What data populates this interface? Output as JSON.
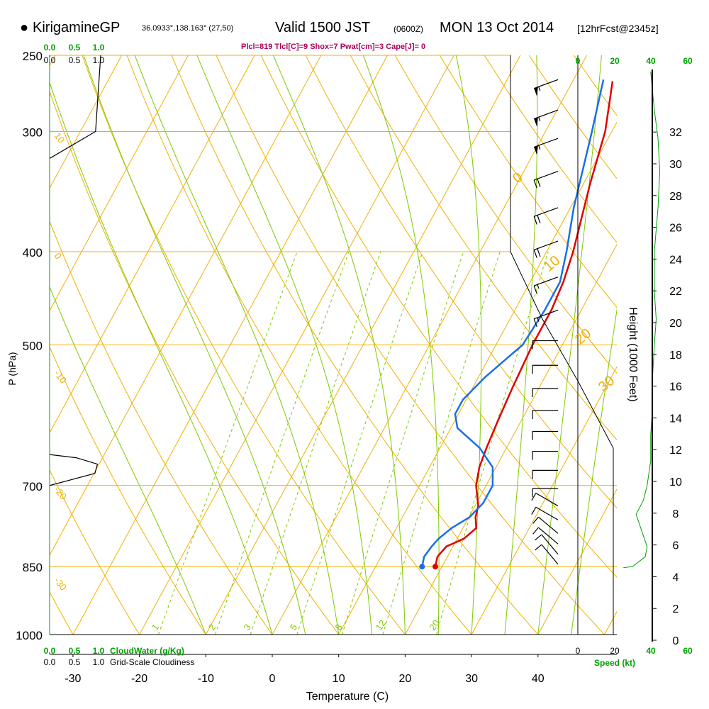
{
  "header": {
    "station": "KirigamineGP",
    "coords": "36.0933°,138.163° (27,50)",
    "valid": "Valid 1500 JST",
    "zulu": "(0600Z)",
    "date": "MON 13 Oct 2014",
    "forecast": "[12hrFcst@2345z]"
  },
  "params_line": "Plcl=819 Tlcl[C]=9 Shox=7 Pwat[cm]=3 Cape[J]= 0",
  "cloud": {
    "top_green": [
      "0.0",
      "0.5",
      "1.0"
    ],
    "top_black": [
      "0.0",
      "0.5",
      "1.0"
    ],
    "bottom_green": [
      "0.0",
      "0.5",
      "1.0"
    ],
    "bottom_black": [
      "0.0",
      "0.5",
      "1.0"
    ],
    "cloud_water_label": "CloudWater (g/Kg)",
    "cloudiness_label": "Grid-Scale Cloudiness"
  },
  "speed": {
    "top_green": [
      "0",
      "20",
      "40",
      "60"
    ],
    "bottom_black": [
      "0",
      "20"
    ],
    "bottom_green": [
      "40",
      "60"
    ],
    "label": "Speed (kt)"
  },
  "colors": {
    "temperature": "#e00000",
    "dewpoint": "#1a6fe8",
    "isobar": "#f0b000",
    "mixing_ratio": "#80c800",
    "cloud_green": "#00a000",
    "params": "#b0005a"
  },
  "chart_data": {
    "type": "line",
    "title": "KirigamineGP Valid 1500 JST MON 13 Oct 2014",
    "xlabel": "Temperature (C)",
    "ylabel": "P (hPa)",
    "y2label": "Height (1000 Feet)",
    "xlim": [
      -35,
      45
    ],
    "ylim": [
      1000,
      250
    ],
    "yscale": "log",
    "x_ticks": [
      -30,
      -20,
      -10,
      0,
      10,
      20,
      30,
      40
    ],
    "p_ticks": [
      250,
      300,
      400,
      500,
      700,
      850,
      1000
    ],
    "height_ticks": [
      0,
      2,
      4,
      6,
      8,
      10,
      12,
      14,
      16,
      18,
      20,
      22,
      24,
      26,
      28,
      30,
      32
    ],
    "mixing_ratio_labels": [
      "1",
      "2",
      "3",
      "5",
      "8",
      "12",
      "20"
    ],
    "isotherm_labels": [
      {
        "text": "10",
        "p": 300
      },
      {
        "text": "0",
        "p": 400
      },
      {
        "text": "-10",
        "p": 530
      },
      {
        "text": "-20",
        "p": 700
      },
      {
        "text": "-30",
        "p": 870
      }
    ],
    "adiabat_labels": [
      {
        "text": "0",
        "p": 340
      },
      {
        "text": "10",
        "p": 420
      },
      {
        "text": "20",
        "p": 500
      },
      {
        "text": "30",
        "p": 560
      }
    ],
    "series": [
      {
        "name": "Temperature",
        "points": [
          [
            19,
            850
          ],
          [
            18.5,
            830
          ],
          [
            19,
            810
          ],
          [
            21,
            795
          ],
          [
            22,
            775
          ],
          [
            21,
            755
          ],
          [
            20.5,
            735
          ],
          [
            18.5,
            700
          ],
          [
            17.5,
            670
          ],
          [
            17,
            640
          ],
          [
            16.5,
            600
          ],
          [
            16,
            555
          ],
          [
            15.5,
            500
          ],
          [
            15.5,
            460
          ],
          [
            15,
            430
          ],
          [
            14,
            400
          ],
          [
            11,
            340
          ],
          [
            9,
            300
          ],
          [
            6,
            266
          ]
        ]
      },
      {
        "name": "Dewpoint",
        "points": [
          [
            17,
            850
          ],
          [
            16.5,
            830
          ],
          [
            16.8,
            810
          ],
          [
            17.2,
            795
          ],
          [
            18.3,
            775
          ],
          [
            20.1,
            755
          ],
          [
            21,
            730
          ],
          [
            21,
            700
          ],
          [
            19.5,
            670
          ],
          [
            16,
            640
          ],
          [
            11,
            610
          ],
          [
            9.5,
            590
          ],
          [
            9.5,
            570
          ],
          [
            11,
            540
          ],
          [
            14,
            500
          ],
          [
            14.5,
            460
          ],
          [
            14.5,
            430
          ],
          [
            13,
            400
          ],
          [
            10.5,
            360
          ],
          [
            7,
            300
          ],
          [
            4.5,
            265
          ]
        ]
      }
    ],
    "wind_profile": [
      {
        "p": 265,
        "dir": 250,
        "kt": 55
      },
      {
        "p": 285,
        "dir": 250,
        "kt": 55
      },
      {
        "p": 305,
        "dir": 250,
        "kt": 55
      },
      {
        "p": 330,
        "dir": 250,
        "kt": 20
      },
      {
        "p": 360,
        "dir": 250,
        "kt": 20
      },
      {
        "p": 390,
        "dir": 250,
        "kt": 20
      },
      {
        "p": 425,
        "dir": 250,
        "kt": 15
      },
      {
        "p": 460,
        "dir": 250,
        "kt": 15
      },
      {
        "p": 495,
        "dir": 270,
        "kt": 10
      },
      {
        "p": 525,
        "dir": 270,
        "kt": 10
      },
      {
        "p": 555,
        "dir": 270,
        "kt": 10
      },
      {
        "p": 585,
        "dir": 270,
        "kt": 10
      },
      {
        "p": 615,
        "dir": 270,
        "kt": 10
      },
      {
        "p": 645,
        "dir": 270,
        "kt": 10
      },
      {
        "p": 675,
        "dir": 270,
        "kt": 10
      },
      {
        "p": 705,
        "dir": 270,
        "kt": 10
      },
      {
        "p": 735,
        "dir": 300,
        "kt": 10
      },
      {
        "p": 760,
        "dir": 300,
        "kt": 10
      },
      {
        "p": 785,
        "dir": 310,
        "kt": 10
      },
      {
        "p": 805,
        "dir": 310,
        "kt": 10
      },
      {
        "p": 825,
        "dir": 320,
        "kt": 10
      },
      {
        "p": 845,
        "dir": 320,
        "kt": 10
      }
    ],
    "cloud_water": [
      [
        0,
        255
      ],
      [
        0.1,
        300
      ],
      [
        0.2,
        320
      ],
      [
        0.4,
        320
      ],
      [
        0,
        330
      ]
    ],
    "cloudiness": [
      [
        0,
        650
      ],
      [
        0.5,
        655
      ],
      [
        0.9,
        665
      ],
      [
        0.85,
        680
      ],
      [
        0,
        700
      ]
    ],
    "speed_profile": [
      [
        40,
        260
      ],
      [
        42,
        285
      ],
      [
        44,
        305
      ],
      [
        45,
        330
      ],
      [
        44,
        360
      ],
      [
        42,
        400
      ],
      [
        42,
        440
      ],
      [
        43,
        470
      ],
      [
        42,
        500
      ],
      [
        41,
        540
      ],
      [
        41,
        580
      ],
      [
        40,
        620
      ],
      [
        40,
        660
      ],
      [
        38,
        700
      ],
      [
        36,
        725
      ],
      [
        32,
        750
      ],
      [
        35,
        780
      ],
      [
        38,
        810
      ],
      [
        37,
        830
      ],
      [
        30,
        850
      ],
      [
        25,
        852
      ]
    ]
  }
}
